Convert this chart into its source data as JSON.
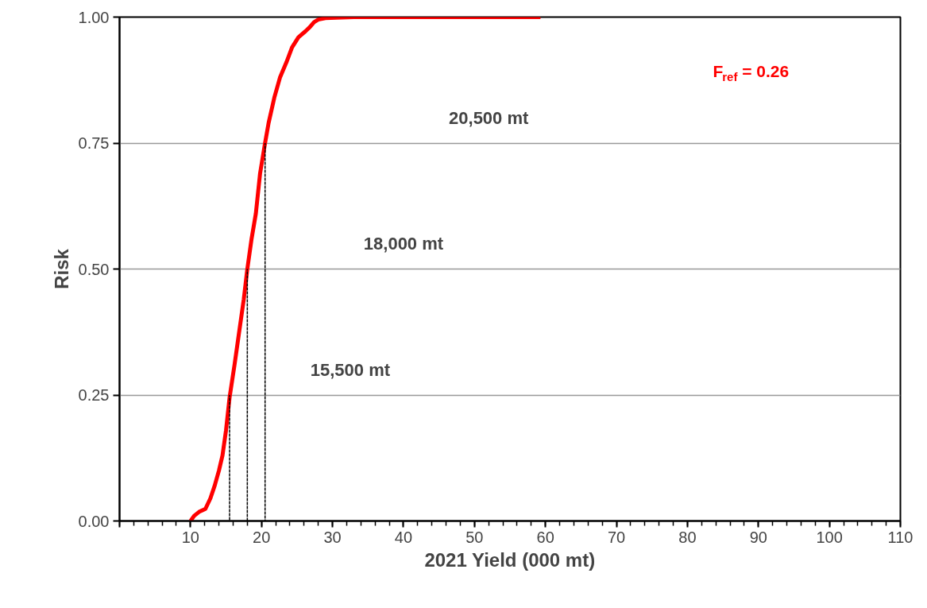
{
  "chart_data": {
    "type": "line",
    "xlabel": "2021 Yield (000 mt)",
    "ylabel": "Risk",
    "xlim": [
      0,
      110
    ],
    "xticks": [
      {
        "value": 0,
        "label": null
      },
      10,
      20,
      30,
      40,
      50,
      60,
      70,
      80,
      90,
      100,
      110
    ],
    "ylim": [
      0,
      1
    ],
    "yticks": [
      {
        "value": 0,
        "label": "0.00"
      },
      {
        "value": 0.25,
        "label": "0.25"
      },
      {
        "value": 0.5,
        "label": "0.50"
      },
      {
        "value": 0.75,
        "label": "0.75"
      },
      {
        "value": 1,
        "label": "1.00"
      }
    ],
    "grid": "y",
    "marker": "none",
    "series": [
      {
        "color": "#ff0000",
        "line_style": "solid",
        "x": [
          10,
          10.5,
          11.2,
          12.1,
          12.8,
          13.4,
          14.0,
          14.5,
          15.0,
          15.5,
          16.2,
          16.8,
          17.5,
          18.0,
          18.6,
          19.2,
          19.8,
          20.5,
          21.0,
          21.8,
          22.6,
          23.5,
          24.3,
          25.2,
          26.2,
          26.8,
          27.4,
          28.0,
          29.0,
          30.5,
          33.0,
          40.0,
          50.0,
          59.3
        ],
        "values": [
          0.0,
          0.01,
          0.018,
          0.024,
          0.045,
          0.07,
          0.1,
          0.13,
          0.18,
          0.245,
          0.31,
          0.37,
          0.44,
          0.5,
          0.56,
          0.61,
          0.69,
          0.75,
          0.79,
          0.84,
          0.88,
          0.91,
          0.94,
          0.96,
          0.972,
          0.98,
          0.99,
          0.995,
          0.998,
          0.999,
          1.0,
          1.0,
          1.0,
          1.0
        ]
      },
      {
        "color": "#000000",
        "line_style": "dashed",
        "x": [
          15.5,
          15.5
        ],
        "values": [
          0,
          0.25
        ]
      },
      {
        "color": "#000000",
        "line_style": "dashed",
        "x": [
          18.0,
          18.0
        ],
        "values": [
          0,
          0.5
        ]
      },
      {
        "color": "#000000",
        "line_style": "dashed",
        "x": [
          20.5,
          20.5
        ],
        "values": [
          0,
          0.75
        ]
      }
    ],
    "annotations": [
      "20,500 mt",
      "18,000 mt",
      "15,500 mt",
      "F$_{ref}$ =  0.26"
    ]
  }
}
